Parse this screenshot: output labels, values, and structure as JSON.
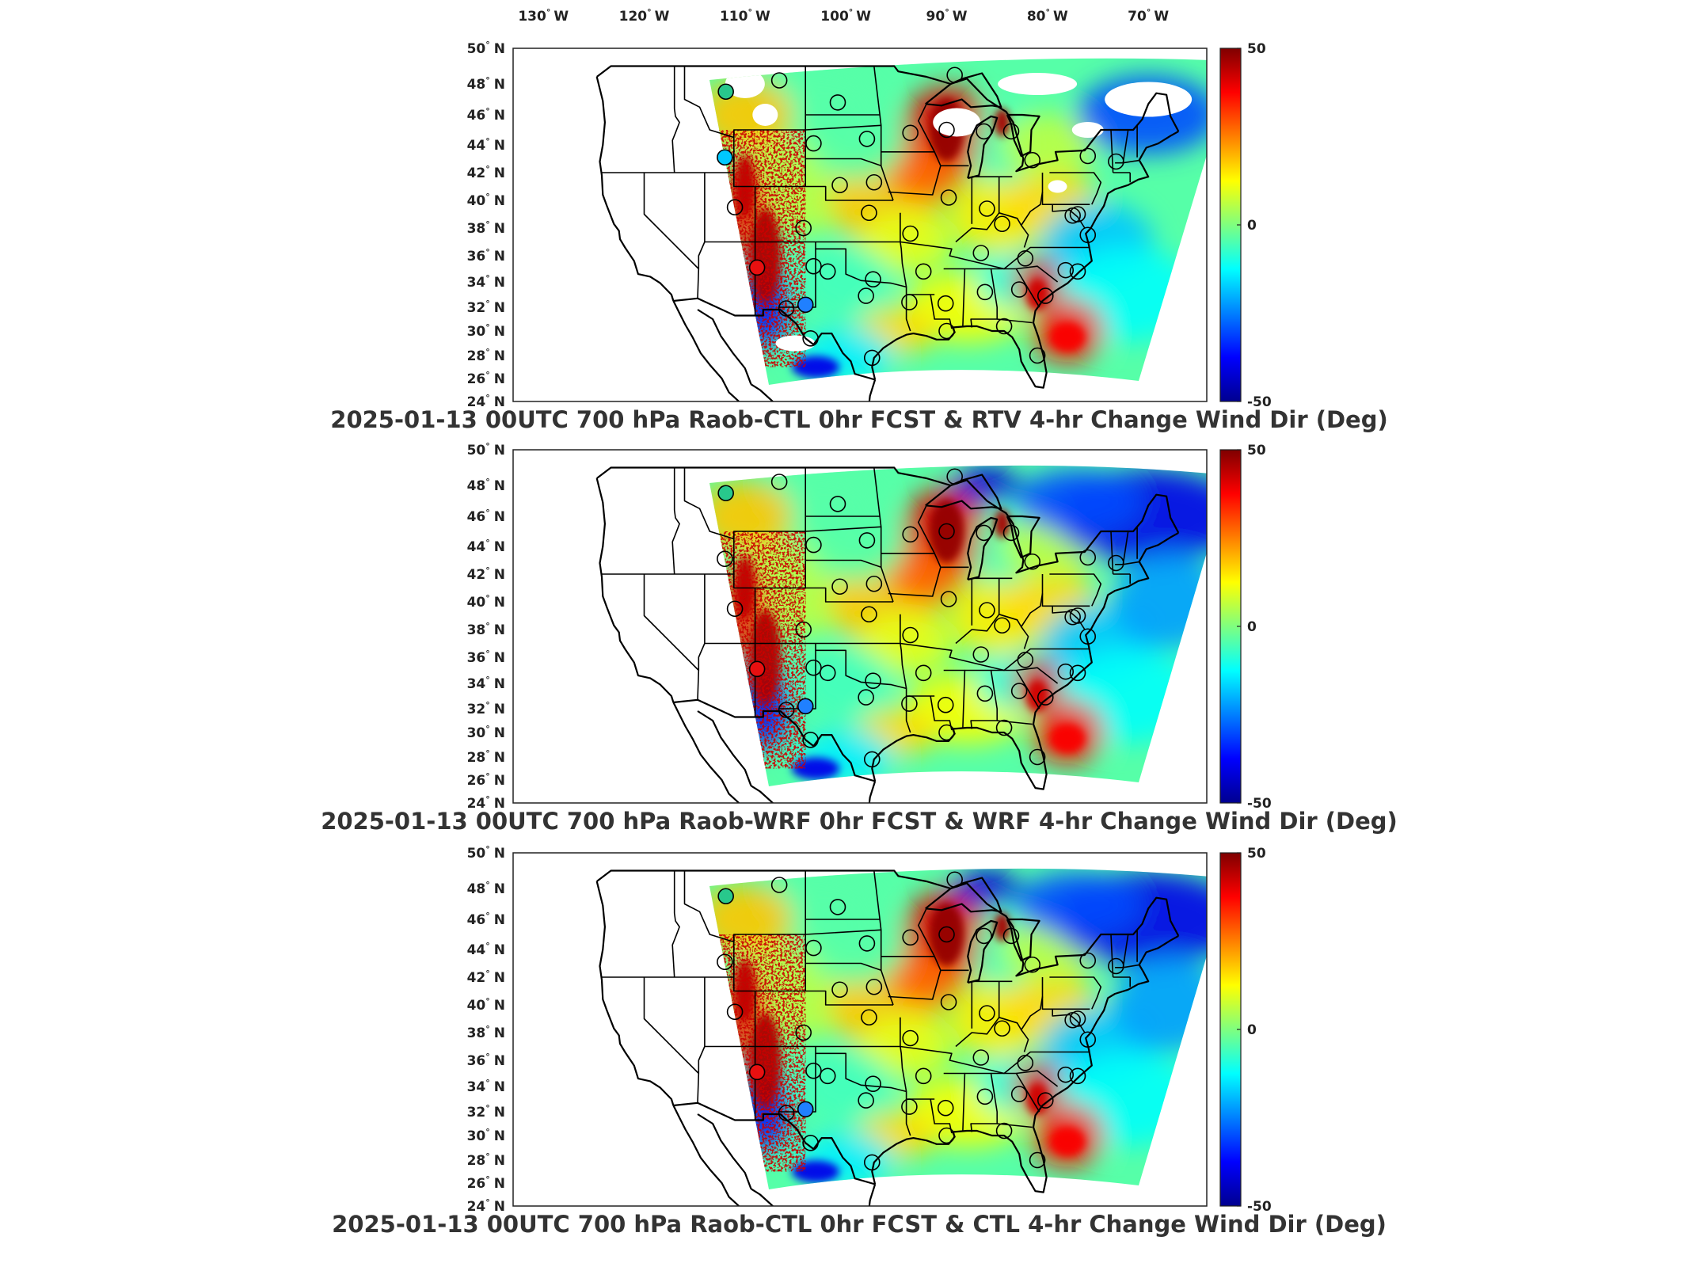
{
  "figure": {
    "lon_labels": [
      "130",
      "120",
      "110",
      "100",
      "90",
      "80",
      "70"
    ],
    "lon_values": [
      -130,
      -120,
      -110,
      -100,
      -90,
      -80,
      -70
    ],
    "lat_values": [
      50,
      48,
      46,
      44,
      42,
      40,
      38,
      36,
      34,
      32,
      30,
      28,
      26,
      24
    ],
    "lon_suffix": "W",
    "lat_suffix": "N",
    "colorbar": {
      "min": -50,
      "max": 50,
      "tick_labels": [
        "50",
        "0",
        "-50"
      ],
      "colormap": "jet",
      "colors": [
        "#00008f",
        "#0000ff",
        "#00ffff",
        "#7fff7f",
        "#ffff00",
        "#ff0000",
        "#7f0000"
      ]
    },
    "marker_note": "circles mark raob stations, filled with observed value colour",
    "panels": [
      {
        "title": "2025-01-13 00UTC 700 hPa Raob-CTL 0hr FCST & RTV 4-hr Change Wind Dir (Deg)",
        "variant": "rtv"
      },
      {
        "title": "2025-01-13 00UTC 700 hPa Raob-WRF 0hr FCST & WRF 4-hr Change Wind Dir (Deg)",
        "variant": "wrf"
      },
      {
        "title": "2025-01-13 00UTC 700 hPa Raob-CTL 0hr FCST & CTL 4-hr Change Wind Dir (Deg)",
        "variant": "ctl"
      }
    ],
    "stations": [
      {
        "lon": -111.9,
        "lat": 47.5
      },
      {
        "lon": -106.6,
        "lat": 48.2
      },
      {
        "lon": -100.8,
        "lat": 46.8
      },
      {
        "lon": -97.9,
        "lat": 44.4
      },
      {
        "lon": -103.2,
        "lat": 44.1
      },
      {
        "lon": -93.6,
        "lat": 44.8
      },
      {
        "lon": -89.2,
        "lat": 48.5
      },
      {
        "lon": -86.3,
        "lat": 44.9
      },
      {
        "lon": -83.6,
        "lat": 44.9
      },
      {
        "lon": -81.5,
        "lat": 42.9
      },
      {
        "lon": -76.0,
        "lat": 43.2
      },
      {
        "lon": -73.2,
        "lat": 42.8
      },
      {
        "lon": -112.0,
        "lat": 43.1
      },
      {
        "lon": -100.6,
        "lat": 41.1
      },
      {
        "lon": -97.2,
        "lat": 41.3
      },
      {
        "lon": -89.8,
        "lat": 40.2
      },
      {
        "lon": -86.0,
        "lat": 39.4
      },
      {
        "lon": -84.5,
        "lat": 38.3
      },
      {
        "lon": -111.0,
        "lat": 39.5
      },
      {
        "lon": -104.2,
        "lat": 38.0
      },
      {
        "lon": -97.7,
        "lat": 39.1
      },
      {
        "lon": -93.6,
        "lat": 37.6
      },
      {
        "lon": -77.5,
        "lat": 38.9
      },
      {
        "lon": -76.0,
        "lat": 37.5
      },
      {
        "lon": -108.8,
        "lat": 35.1
      },
      {
        "lon": -103.2,
        "lat": 35.2
      },
      {
        "lon": -101.8,
        "lat": 34.8
      },
      {
        "lon": -97.3,
        "lat": 34.2
      },
      {
        "lon": -92.3,
        "lat": 34.8
      },
      {
        "lon": -86.6,
        "lat": 36.2
      },
      {
        "lon": -82.2,
        "lat": 35.8
      },
      {
        "lon": -78.2,
        "lat": 34.9
      },
      {
        "lon": -105.9,
        "lat": 31.9
      },
      {
        "lon": -104.0,
        "lat": 32.2
      },
      {
        "lon": -98.0,
        "lat": 32.9
      },
      {
        "lon": -93.7,
        "lat": 32.4
      },
      {
        "lon": -90.1,
        "lat": 32.3
      },
      {
        "lon": -86.2,
        "lat": 33.2
      },
      {
        "lon": -82.8,
        "lat": 33.4
      },
      {
        "lon": -80.2,
        "lat": 32.9
      },
      {
        "lon": -77.0,
        "lat": 34.8
      },
      {
        "lon": -103.5,
        "lat": 29.4
      },
      {
        "lon": -97.4,
        "lat": 27.8
      },
      {
        "lon": -90.0,
        "lat": 30.0
      },
      {
        "lon": -84.3,
        "lat": 30.4
      },
      {
        "lon": -81.0,
        "lat": 28.0
      },
      {
        "lon": -77.0,
        "lat": 39.0
      },
      {
        "lon": -90.0,
        "lat": 45.0
      }
    ]
  }
}
